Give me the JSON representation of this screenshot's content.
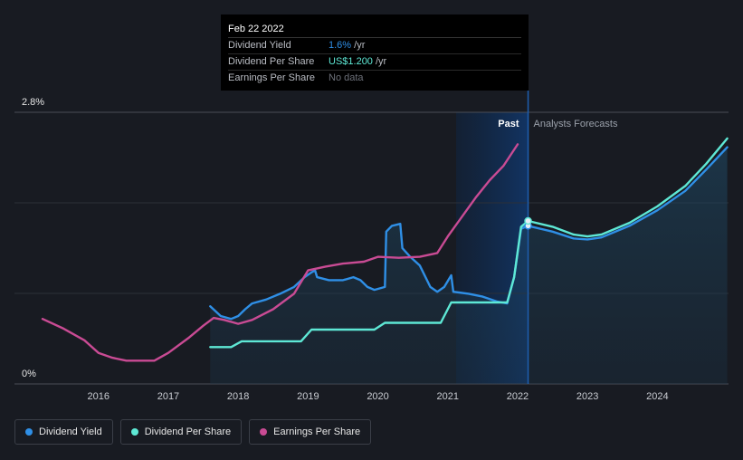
{
  "tooltip": {
    "date": "Feb 22 2022",
    "rows": [
      {
        "label": "Dividend Yield",
        "value": "1.6%",
        "unit": " /yr"
      },
      {
        "label": "Dividend Per Share",
        "value": "US$1.200",
        "unit": " /yr"
      },
      {
        "label": "Earnings Per Share",
        "value": "No data",
        "unit": ""
      }
    ]
  },
  "legend": [
    {
      "label": "Dividend Yield",
      "color": "#2f8fe6"
    },
    {
      "label": "Dividend Per Share",
      "color": "#5ee8d5"
    },
    {
      "label": "Earnings Per Share",
      "color": "#c94b94"
    }
  ],
  "chart_data": {
    "type": "line",
    "y_axis_labels": [
      "2.8%",
      "0%"
    ],
    "ylim": [
      0,
      2.8
    ],
    "x_tick_labels": [
      "2016",
      "2017",
      "2018",
      "2019",
      "2020",
      "2021",
      "2022",
      "2023",
      "2024"
    ],
    "xlim": [
      2015.2,
      2025.0
    ],
    "past_label": "Past",
    "forecast_label": "Analysts Forecasts",
    "forecast_start": 2021.12,
    "divider_x": 2022.15,
    "grid": true,
    "series": [
      {
        "name": "Dividend Yield",
        "color": "#2f8fe6",
        "points": [
          [
            2017.6,
            0.8
          ],
          [
            2017.75,
            0.7
          ],
          [
            2017.9,
            0.67
          ],
          [
            2018.0,
            0.7
          ],
          [
            2018.1,
            0.77
          ],
          [
            2018.2,
            0.83
          ],
          [
            2018.4,
            0.87
          ],
          [
            2018.6,
            0.93
          ],
          [
            2018.8,
            1.0
          ],
          [
            2018.95,
            1.1
          ],
          [
            2019.05,
            1.15
          ],
          [
            2019.1,
            1.17
          ],
          [
            2019.13,
            1.1
          ],
          [
            2019.3,
            1.07
          ],
          [
            2019.5,
            1.07
          ],
          [
            2019.65,
            1.1
          ],
          [
            2019.75,
            1.07
          ],
          [
            2019.85,
            1.0
          ],
          [
            2019.95,
            0.97
          ],
          [
            2020.1,
            1.0
          ],
          [
            2020.12,
            1.57
          ],
          [
            2020.2,
            1.63
          ],
          [
            2020.32,
            1.65
          ],
          [
            2020.35,
            1.4
          ],
          [
            2020.45,
            1.32
          ],
          [
            2020.6,
            1.22
          ],
          [
            2020.75,
            1.0
          ],
          [
            2020.85,
            0.95
          ],
          [
            2020.95,
            1.0
          ],
          [
            2021.05,
            1.12
          ],
          [
            2021.08,
            0.95
          ],
          [
            2021.3,
            0.93
          ],
          [
            2021.5,
            0.9
          ],
          [
            2021.7,
            0.85
          ],
          [
            2021.85,
            0.83
          ],
          [
            2021.95,
            1.1
          ],
          [
            2022.05,
            1.6
          ],
          [
            2022.15,
            1.63
          ],
          [
            2022.5,
            1.57
          ],
          [
            2022.8,
            1.5
          ],
          [
            2023.0,
            1.49
          ],
          [
            2023.2,
            1.51
          ],
          [
            2023.6,
            1.63
          ],
          [
            2024.0,
            1.79
          ],
          [
            2024.4,
            1.99
          ],
          [
            2024.7,
            2.21
          ],
          [
            2025.0,
            2.44
          ]
        ]
      },
      {
        "name": "Dividend Per Share",
        "color": "#5ee8d5",
        "points": [
          [
            2017.6,
            0.38
          ],
          [
            2017.9,
            0.38
          ],
          [
            2018.05,
            0.44
          ],
          [
            2018.9,
            0.44
          ],
          [
            2019.05,
            0.56
          ],
          [
            2019.95,
            0.56
          ],
          [
            2020.1,
            0.63
          ],
          [
            2020.9,
            0.63
          ],
          [
            2021.05,
            0.84
          ],
          [
            2021.85,
            0.84
          ],
          [
            2021.95,
            1.1
          ],
          [
            2022.05,
            1.62
          ],
          [
            2022.15,
            1.68
          ],
          [
            2022.5,
            1.62
          ],
          [
            2022.8,
            1.54
          ],
          [
            2023.0,
            1.52
          ],
          [
            2023.2,
            1.54
          ],
          [
            2023.6,
            1.66
          ],
          [
            2024.0,
            1.83
          ],
          [
            2024.4,
            2.04
          ],
          [
            2024.7,
            2.27
          ],
          [
            2025.0,
            2.53
          ]
        ]
      },
      {
        "name": "Earnings Per Share",
        "color": "#c94b94",
        "points": [
          [
            2015.2,
            0.67
          ],
          [
            2015.5,
            0.57
          ],
          [
            2015.8,
            0.45
          ],
          [
            2016.0,
            0.32
          ],
          [
            2016.2,
            0.27
          ],
          [
            2016.4,
            0.24
          ],
          [
            2016.6,
            0.24
          ],
          [
            2016.8,
            0.24
          ],
          [
            2017.0,
            0.32
          ],
          [
            2017.3,
            0.48
          ],
          [
            2017.5,
            0.6
          ],
          [
            2017.65,
            0.68
          ],
          [
            2017.8,
            0.66
          ],
          [
            2018.0,
            0.62
          ],
          [
            2018.2,
            0.66
          ],
          [
            2018.5,
            0.77
          ],
          [
            2018.8,
            0.93
          ],
          [
            2019.0,
            1.17
          ],
          [
            2019.25,
            1.21
          ],
          [
            2019.5,
            1.24
          ],
          [
            2019.8,
            1.26
          ],
          [
            2020.0,
            1.31
          ],
          [
            2020.3,
            1.3
          ],
          [
            2020.6,
            1.31
          ],
          [
            2020.85,
            1.35
          ],
          [
            2021.0,
            1.52
          ],
          [
            2021.2,
            1.72
          ],
          [
            2021.4,
            1.92
          ],
          [
            2021.6,
            2.1
          ],
          [
            2021.8,
            2.25
          ],
          [
            2022.0,
            2.47
          ]
        ]
      }
    ],
    "markers": [
      {
        "series": "Dividend Yield",
        "x": 2022.15,
        "y": 1.63
      },
      {
        "series": "Dividend Per Share",
        "x": 2022.15,
        "y": 1.68
      }
    ]
  }
}
